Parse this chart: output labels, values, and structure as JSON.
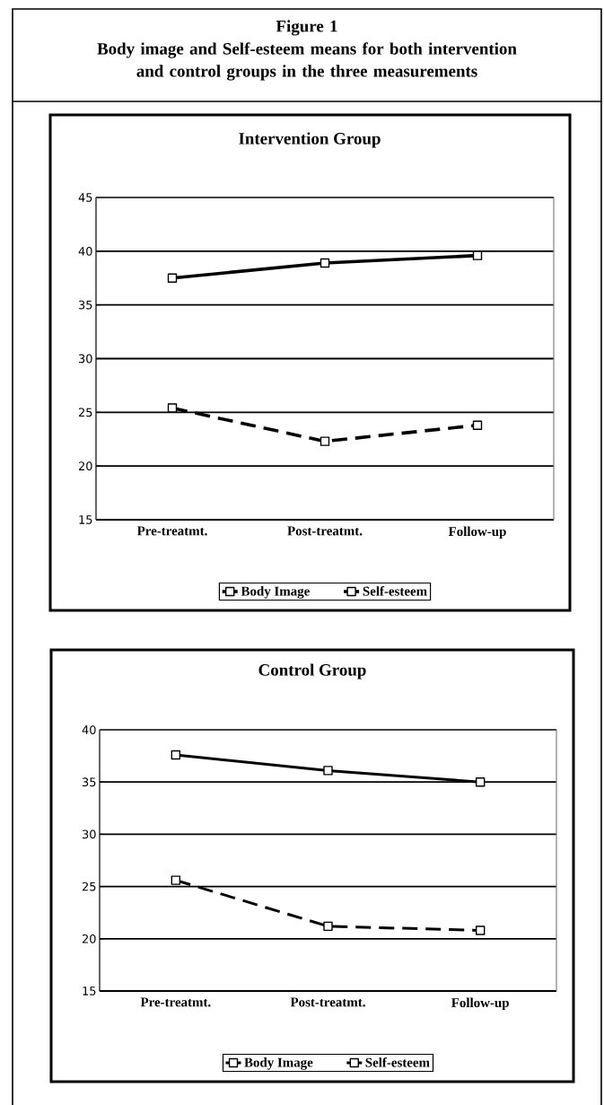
{
  "chart_data": [
    {
      "type": "line",
      "title": "Intervention Group",
      "annotations": [
        "Figure 1",
        "Body image and Self-esteem means for both intervention and control groups in the three measurements"
      ],
      "categories": [
        "Pre-treatmt.",
        "Post-treatmt.",
        "Follow-up"
      ],
      "series": [
        {
          "name": "Body Image",
          "color": "#000000",
          "line_style": "solid",
          "values": [
            37.5,
            38.9,
            39.6
          ]
        },
        {
          "name": "Self-esteem",
          "color": "#000000",
          "line_style": "dashed",
          "values": [
            25.4,
            22.3,
            23.8
          ]
        }
      ],
      "ylim": [
        15,
        45
      ],
      "yticks": [
        15,
        20,
        25,
        30,
        35,
        40,
        45
      ],
      "grid": "y",
      "legend": "bottom",
      "marker": "square"
    },
    {
      "type": "line",
      "title": "Control Group",
      "categories": [
        "Pre-treatmt.",
        "Post-treatmt.",
        "Follow-up"
      ],
      "series": [
        {
          "name": "Body Image",
          "color": "#000000",
          "line_style": "solid",
          "values": [
            37.6,
            36.1,
            35.0
          ]
        },
        {
          "name": "Self-esteem",
          "color": "#000000",
          "line_style": "dashed",
          "values": [
            25.6,
            21.2,
            20.8
          ]
        }
      ],
      "ylim": [
        15,
        40
      ],
      "yticks": [
        15,
        20,
        25,
        30,
        35,
        40
      ],
      "grid": "y",
      "legend": "bottom",
      "marker": "square"
    }
  ]
}
